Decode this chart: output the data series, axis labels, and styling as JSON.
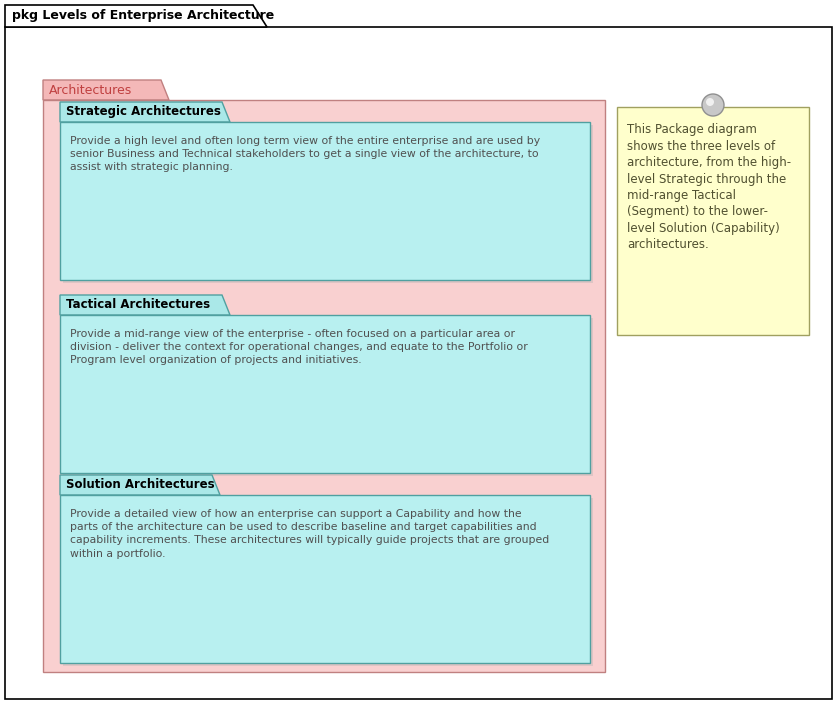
{
  "title": "pkg Levels of Enterprise Architecture",
  "bg_color": "#ffffff",
  "arch_package_label": "Architectures",
  "arch_package_tab_color": "#f4b8b8",
  "arch_package_body_color": "#f9d0d0",
  "arch_package_border_color": "#c08080",
  "packages": [
    {
      "label": "Strategic Architectures",
      "tab_color": "#aae8e8",
      "body_color": "#b8f0f0",
      "border_color": "#50a0a0",
      "text": "Provide a high level and often long term view of the entire enterprise and are used by\nsenior Business and Technical stakeholders to get a single view of the architecture, to\nassist with strategic planning."
    },
    {
      "label": "Tactical Architectures",
      "tab_color": "#aae8e8",
      "body_color": "#b8f0f0",
      "border_color": "#50a0a0",
      "text": "Provide a mid-range view of the enterprise - often focused on a particular area or\ndivision - deliver the context for operational changes, and equate to the Portfolio or\nProgram level organization of projects and initiatives."
    },
    {
      "label": "Solution Architectures",
      "tab_color": "#aae8e8",
      "body_color": "#b8f0f0",
      "border_color": "#50a0a0",
      "text": "Provide a detailed view of how an enterprise can support a Capability and how the\nparts of the architecture can be used to describe baseline and target capabilities and\ncapability increments. These architectures will typically guide projects that are grouped\nwithin a portfolio."
    }
  ],
  "note_text": "This Package diagram\nshows the three levels of\narchitecture, from the high-\nlevel Strategic through the\nmid-range Tactical\n(Segment) to the lower-\nlevel Solution (Capability)\narchitectures.",
  "note_bg_color": "#ffffcc",
  "note_border_color": "#a0a060"
}
